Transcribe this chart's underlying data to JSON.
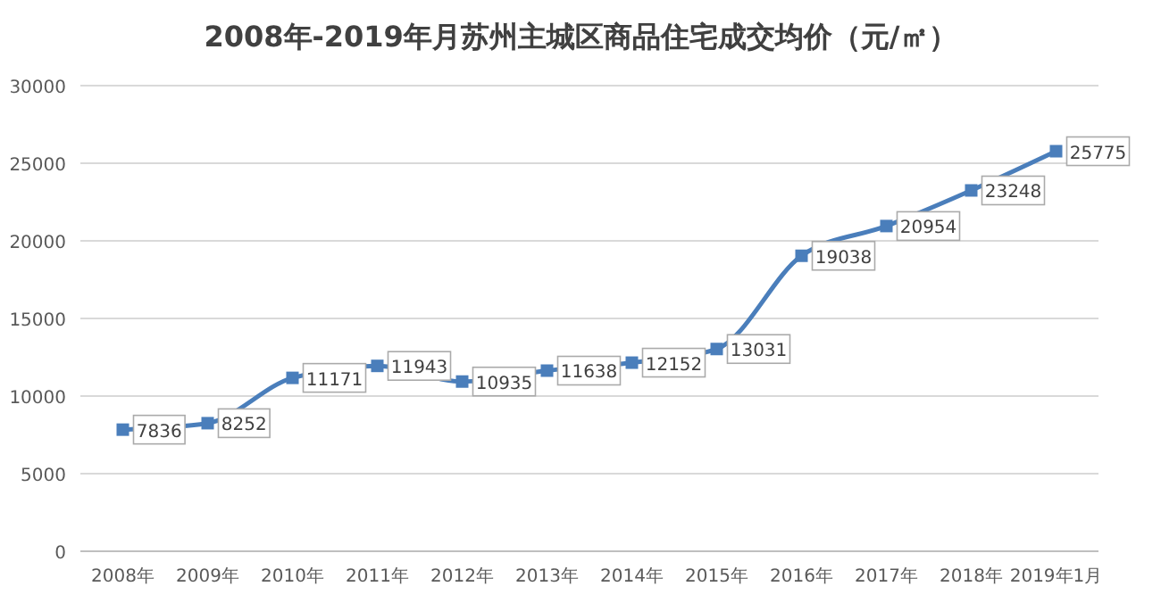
{
  "chart_data": {
    "type": "line",
    "title": "2008年-2019年月苏州主城区商品住宅成交均价（元/㎡）",
    "categories": [
      "2008年",
      "2009年",
      "2010年",
      "2011年",
      "2012年",
      "2013年",
      "2014年",
      "2015年",
      "2016年",
      "2017年",
      "2018年",
      "2019年1月"
    ],
    "series": [
      {
        "color": "#4a7ebb",
        "values": [
          7836,
          8252,
          11171,
          11943,
          10935,
          11638,
          12152,
          13031,
          19038,
          20954,
          23248,
          25775
        ]
      }
    ],
    "ylim": [
      0,
      30000
    ],
    "yticks": [
      0,
      5000,
      10000,
      15000,
      20000,
      25000,
      30000
    ],
    "grid": "y",
    "marker": "square",
    "line_style": "solid",
    "data_labels": true
  }
}
